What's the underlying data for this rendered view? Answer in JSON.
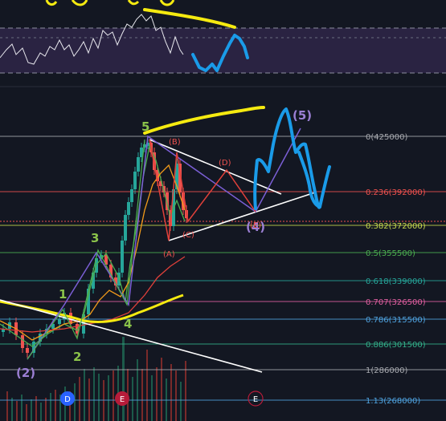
{
  "chart_data": {
    "type": "line",
    "fib_levels": [
      {
        "ratio": "0",
        "price": 425000,
        "label": "0(425000)",
        "color": "#a8aab0"
      },
      {
        "ratio": "0.236",
        "price": 392000,
        "label": "0.236(392000)",
        "color": "#f0524f"
      },
      {
        "ratio": "0.382",
        "price": 372000,
        "label": "0.382(372000)",
        "color": "#c6d84e"
      },
      {
        "ratio": "0.5",
        "price": 355500,
        "label": "0.5(355500)",
        "color": "#4caf50"
      },
      {
        "ratio": "0.618",
        "price": 339000,
        "label": "0.618(339000)",
        "color": "#26a69a"
      },
      {
        "ratio": "0.707",
        "price": 326500,
        "label": "0.707(326500)",
        "color": "#e05fa0"
      },
      {
        "ratio": "0.786",
        "price": 315500,
        "label": "0.786(315500)",
        "color": "#4fa3e0"
      },
      {
        "ratio": "0.886",
        "price": 301500,
        "label": "0.886(301500)",
        "color": "#33b08a"
      },
      {
        "ratio": "1",
        "price": 286000,
        "label": "1(286000)",
        "color": "#a8aab0"
      },
      {
        "ratio": "1.13",
        "price": 268000,
        "label": "1.13(268000)",
        "color": "#4fa3e0"
      }
    ],
    "impulse_wave_labels": [
      {
        "text": "(2)",
        "color": "#9b7fd4"
      },
      {
        "text": "1",
        "color": "#8bc34a"
      },
      {
        "text": "2",
        "color": "#8bc34a"
      },
      {
        "text": "3",
        "color": "#8bc34a"
      },
      {
        "text": "4",
        "color": "#8bc34a"
      },
      {
        "text": "5",
        "color": "#8bc34a"
      },
      {
        "text": "(4)",
        "color": "#9b7fd4"
      },
      {
        "text": "(5)",
        "color": "#9b7fd4"
      }
    ],
    "correction_labels": [
      {
        "text": "(A)",
        "color": "#f0524f"
      },
      {
        "text": "(B)",
        "color": "#f0524f"
      },
      {
        "text": "(C)",
        "color": "#f0524f"
      },
      {
        "text": "(D)",
        "color": "#f0524f"
      },
      {
        "text": "(E)",
        "color": "#f0524f"
      }
    ],
    "date_badges": [
      "D",
      "E",
      "E"
    ],
    "colors": {
      "background": "#131722",
      "annotation_yellow": "#f5ea10",
      "annotation_blue": "#1a9be8",
      "wave_purple": "#7b5fd6",
      "current_price": "#f0524f"
    }
  }
}
